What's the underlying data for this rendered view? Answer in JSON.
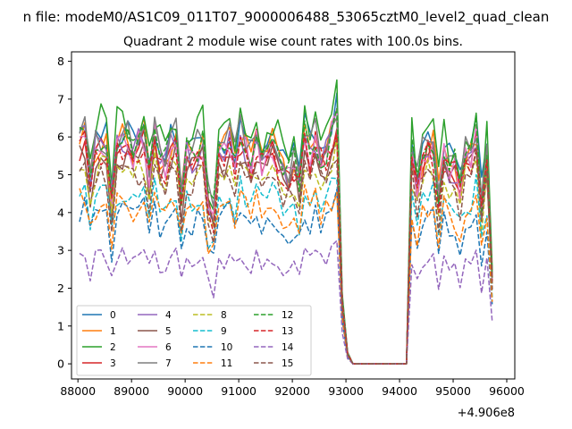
{
  "suptitle": "n file: modeM0/AS1C09_011T07_9000006488_53065cztM0_level2_quad_clean",
  "chart_data": {
    "type": "line",
    "title": "Quadrant 2 module wise count rates with 100.0s bins.",
    "xlabel": "",
    "ylabel": "",
    "offset_label": "+4.906e8",
    "xlim": [
      87880,
      96150
    ],
    "ylim": [
      -0.4,
      8.25
    ],
    "xticks": [
      88000,
      89000,
      90000,
      91000,
      92000,
      93000,
      94000,
      95000,
      96000
    ],
    "xtick_labels": [
      "88000",
      "89000",
      "90000",
      "91000",
      "92000",
      "93000",
      "94000",
      "95000",
      "96000"
    ],
    "yticks": [
      0,
      1,
      2,
      3,
      4,
      5,
      6,
      7,
      8
    ],
    "ytick_labels": [
      "0",
      "1",
      "2",
      "3",
      "4",
      "5",
      "6",
      "7",
      "8"
    ],
    "grid": false,
    "legend_position": "lower-left",
    "legend_columns": 4,
    "x_start": 88030,
    "x_step": 100,
    "x_end": 95730,
    "gap": {
      "start": 93130,
      "end": 94130,
      "value": 0
    },
    "series": [
      {
        "name": "0",
        "color": "#1f77b4",
        "dash": "solid",
        "level": 5.9,
        "amp": 0.55,
        "seed": 1
      },
      {
        "name": "1",
        "color": "#ff7f0e",
        "dash": "solid",
        "level": 5.7,
        "amp": 0.55,
        "seed": 2
      },
      {
        "name": "2",
        "color": "#2ca02c",
        "dash": "solid",
        "level": 6.2,
        "amp": 0.6,
        "seed": 3
      },
      {
        "name": "3",
        "color": "#d62728",
        "dash": "solid",
        "level": 5.5,
        "amp": 0.55,
        "seed": 4
      },
      {
        "name": "4",
        "color": "#9467bd",
        "dash": "solid",
        "level": 5.6,
        "amp": 0.55,
        "seed": 5
      },
      {
        "name": "5",
        "color": "#8c564b",
        "dash": "solid",
        "level": 5.3,
        "amp": 0.5,
        "seed": 6
      },
      {
        "name": "6",
        "color": "#e377c2",
        "dash": "solid",
        "level": 5.6,
        "amp": 0.55,
        "seed": 7
      },
      {
        "name": "7",
        "color": "#7f7f7f",
        "dash": "solid",
        "level": 5.8,
        "amp": 0.55,
        "seed": 8
      },
      {
        "name": "8",
        "color": "#bcbd22",
        "dash": "dashed",
        "level": 5.0,
        "amp": 0.5,
        "seed": 9
      },
      {
        "name": "9",
        "color": "#17becf",
        "dash": "dashed",
        "level": 4.4,
        "amp": 0.45,
        "seed": 10
      },
      {
        "name": "10",
        "color": "#1f77b4",
        "dash": "dashed",
        "level": 3.85,
        "amp": 0.45,
        "seed": 11
      },
      {
        "name": "11",
        "color": "#ff7f0e",
        "dash": "dashed",
        "level": 4.1,
        "amp": 0.45,
        "seed": 12
      },
      {
        "name": "12",
        "color": "#2ca02c",
        "dash": "dashed",
        "level": 5.7,
        "amp": 0.5,
        "seed": 13
      },
      {
        "name": "13",
        "color": "#d62728",
        "dash": "dashed",
        "level": 5.45,
        "amp": 0.5,
        "seed": 14
      },
      {
        "name": "14",
        "color": "#9467bd",
        "dash": "dashed",
        "level": 2.75,
        "amp": 0.3,
        "seed": 15
      },
      {
        "name": "15",
        "color": "#8c564b",
        "dash": "dashed",
        "level": 4.9,
        "amp": 0.5,
        "seed": 16
      }
    ]
  }
}
